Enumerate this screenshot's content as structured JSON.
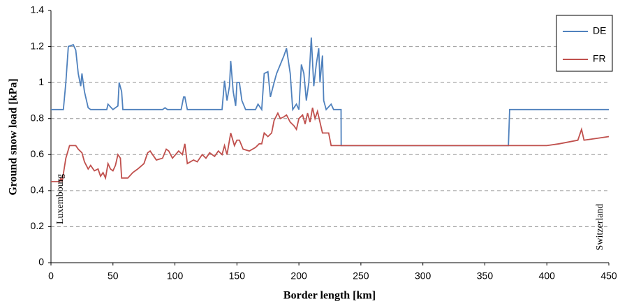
{
  "chart_data": {
    "type": "line",
    "xlabel": "Border length [km]",
    "ylabel": "Ground snow load [kPa]",
    "xlim": [
      0,
      450
    ],
    "xticks": [
      0,
      50,
      100,
      150,
      200,
      250,
      300,
      350,
      400,
      450
    ],
    "ylim": [
      0,
      1.4
    ],
    "yticks": [
      0,
      0.2,
      0.4,
      0.6,
      0.8,
      1,
      1.2,
      1.4
    ],
    "grid": true,
    "legend": "top-right",
    "annotations": [
      "Luxembourg",
      "Switzerland"
    ],
    "series": [
      {
        "name": "DE",
        "color": "#4f81bd",
        "x": [
          0,
          10,
          12,
          14,
          18,
          20,
          22,
          24,
          25,
          27,
          30,
          32,
          45,
          46,
          50,
          54,
          55,
          57,
          58,
          90,
          92,
          94,
          105,
          107,
          108,
          110,
          138,
          140,
          142,
          144,
          145,
          147,
          149,
          150,
          152,
          154,
          157,
          165,
          167,
          170,
          172,
          175,
          177,
          180,
          182,
          185,
          188,
          190,
          193,
          195,
          198,
          200,
          202,
          204,
          206,
          208,
          210,
          212,
          214,
          216,
          217,
          219,
          220,
          222,
          226,
          228,
          234,
          234.1,
          369,
          370,
          430,
          450
        ],
        "values": [
          0.85,
          0.85,
          1.0,
          1.2,
          1.21,
          1.18,
          1.05,
          0.98,
          1.05,
          0.95,
          0.86,
          0.85,
          0.85,
          0.88,
          0.85,
          0.87,
          1.0,
          0.95,
          0.85,
          0.85,
          0.86,
          0.85,
          0.85,
          0.92,
          0.92,
          0.85,
          0.85,
          1.01,
          0.9,
          0.98,
          1.12,
          0.95,
          0.87,
          1.0,
          1.0,
          0.9,
          0.85,
          0.85,
          0.88,
          0.85,
          1.05,
          1.06,
          0.92,
          1.0,
          1.05,
          1.1,
          1.15,
          1.19,
          1.05,
          0.85,
          0.88,
          0.85,
          1.1,
          1.05,
          0.9,
          1.0,
          1.25,
          0.98,
          1.1,
          1.19,
          1.0,
          1.15,
          0.9,
          0.85,
          0.88,
          0.85,
          0.85,
          0.65,
          0.65,
          0.85,
          0.85,
          0.85
        ]
      },
      {
        "name": "FR",
        "color": "#c0504d",
        "x": [
          0,
          7,
          8,
          9,
          12,
          15,
          20,
          22,
          25,
          27,
          30,
          32,
          35,
          38,
          40,
          42,
          44,
          46,
          48,
          50,
          52,
          54,
          56,
          57,
          62,
          66,
          70,
          75,
          78,
          80,
          85,
          90,
          93,
          95,
          98,
          103,
          106,
          108,
          110,
          115,
          118,
          122,
          125,
          128,
          132,
          135,
          138,
          140,
          142,
          145,
          148,
          150,
          152,
          155,
          160,
          165,
          168,
          170,
          172,
          175,
          178,
          180,
          183,
          185,
          188,
          190,
          193,
          196,
          198,
          200,
          203,
          205,
          207,
          209,
          211,
          213,
          215,
          217,
          219,
          224,
          226,
          400,
          410,
          425,
          428,
          430,
          440,
          450
        ],
        "values": [
          0.45,
          0.45,
          0.47,
          0.45,
          0.58,
          0.65,
          0.65,
          0.63,
          0.61,
          0.56,
          0.52,
          0.54,
          0.51,
          0.52,
          0.48,
          0.5,
          0.47,
          0.55,
          0.52,
          0.51,
          0.54,
          0.6,
          0.58,
          0.47,
          0.47,
          0.5,
          0.52,
          0.55,
          0.61,
          0.62,
          0.57,
          0.58,
          0.63,
          0.62,
          0.58,
          0.62,
          0.6,
          0.66,
          0.55,
          0.57,
          0.56,
          0.6,
          0.58,
          0.61,
          0.59,
          0.62,
          0.6,
          0.65,
          0.6,
          0.72,
          0.65,
          0.68,
          0.68,
          0.63,
          0.62,
          0.64,
          0.66,
          0.66,
          0.72,
          0.7,
          0.72,
          0.79,
          0.83,
          0.8,
          0.81,
          0.82,
          0.78,
          0.76,
          0.74,
          0.8,
          0.82,
          0.77,
          0.83,
          0.78,
          0.86,
          0.8,
          0.84,
          0.78,
          0.72,
          0.72,
          0.65,
          0.65,
          0.66,
          0.68,
          0.74,
          0.68,
          0.69,
          0.7
        ]
      }
    ]
  }
}
